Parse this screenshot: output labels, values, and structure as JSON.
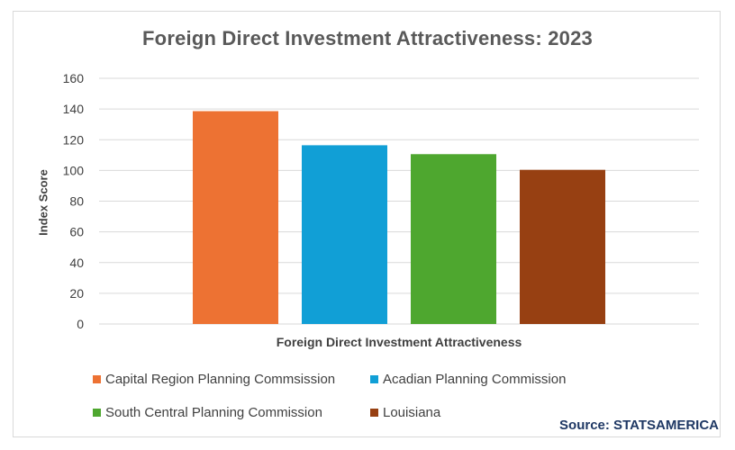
{
  "chart_data": {
    "type": "bar",
    "title": "Foreign Direct Investment Attractiveness: 2023",
    "xlabel": "Foreign Direct Investment Attractiveness",
    "ylabel": "Index Score",
    "ylim": [
      0,
      160
    ],
    "yticks": [
      0,
      20,
      40,
      60,
      80,
      100,
      120,
      140,
      160
    ],
    "grid": true,
    "legend_position": "bottom",
    "series": [
      {
        "name": "Capital Region Planning Commsission",
        "value": 138.6,
        "color": "#ed7233"
      },
      {
        "name": "Acadian Planning Commission",
        "value": 116.4,
        "color": "#119fd6"
      },
      {
        "name": "South Central Planning Commission",
        "value": 110.6,
        "color": "#4ea72f"
      },
      {
        "name": "Louisiana",
        "value": 100.4,
        "color": "#974012"
      }
    ]
  },
  "source": "Source: STATSAMERICA"
}
